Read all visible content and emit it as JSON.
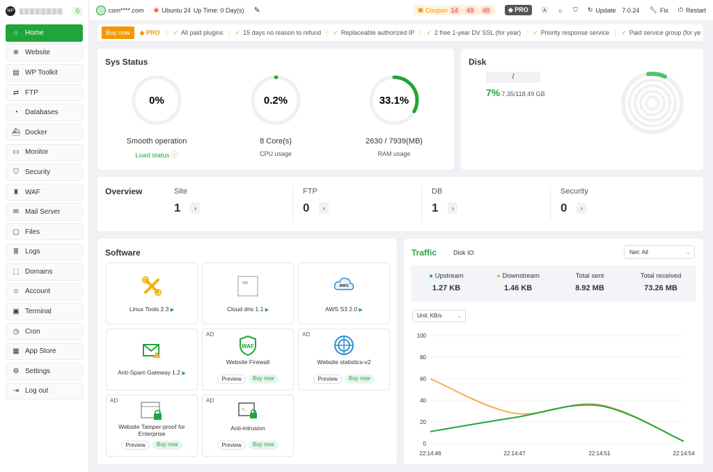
{
  "sidebar": {
    "user": "(blurred)",
    "badge": "0",
    "items": [
      {
        "label": "Home",
        "icon": "home-icon"
      },
      {
        "label": "Website",
        "icon": "globe-icon"
      },
      {
        "label": "WP Toolkit",
        "icon": "wordpress-icon"
      },
      {
        "label": "FTP",
        "icon": "transfer-icon"
      },
      {
        "label": "Databases",
        "icon": "database-icon"
      },
      {
        "label": "Docker",
        "icon": "docker-icon"
      },
      {
        "label": "Monitor",
        "icon": "monitor-icon"
      },
      {
        "label": "Security",
        "icon": "shield-icon"
      },
      {
        "label": "WAF",
        "icon": "waf-icon"
      },
      {
        "label": "Mail Server",
        "icon": "mail-icon"
      },
      {
        "label": "Files",
        "icon": "folder-icon"
      },
      {
        "label": "Logs",
        "icon": "log-icon"
      },
      {
        "label": "Domains",
        "icon": "domain-icon"
      },
      {
        "label": "Account",
        "icon": "user-icon"
      },
      {
        "label": "Terminal",
        "icon": "terminal-icon"
      },
      {
        "label": "Cron",
        "icon": "clock-icon"
      },
      {
        "label": "App Store",
        "icon": "store-icon"
      },
      {
        "label": "Settings",
        "icon": "gear-icon"
      },
      {
        "label": "Log out",
        "icon": "logout-icon"
      }
    ]
  },
  "topbar": {
    "account": "com****.com",
    "os": "Ubuntu 24",
    "uptime": "Up Time: 0 Day(s)",
    "coupon": "Coupon",
    "cd_h": "14",
    "cd_m": "49",
    "cd_s": "48",
    "pro": "PRO",
    "update": "Update",
    "version": "7.0.24",
    "fix": "Fix",
    "restart": "Restart"
  },
  "promo": {
    "buy": "Buy now",
    "pro": "PRO",
    "features": [
      "All paid plugins",
      "15 days no reason to refund",
      "Replaceable authorized IP",
      "2 free 1-year DV SSL (for year)",
      "Priority response service",
      "Paid service group (for ye"
    ]
  },
  "sys": {
    "title": "Sys Status",
    "load": {
      "value": "0%",
      "title": "Smooth operation",
      "sub": "Load status",
      "percent": 0
    },
    "cpu": {
      "value": "0.2%",
      "title": "8 Core(s)",
      "sub": "CPU usage",
      "percent": 0.2
    },
    "ram": {
      "value": "33.1%",
      "title": "2630 / 7939(MB)",
      "sub": "RAM usage",
      "percent": 33.1
    }
  },
  "disk": {
    "title": "Disk",
    "mount": "/",
    "percent": "7%",
    "usage": "7.35/118.49 GB"
  },
  "overview": {
    "title": "Overview",
    "items": [
      {
        "label": "Site",
        "value": "1"
      },
      {
        "label": "FTP",
        "value": "0"
      },
      {
        "label": "DB",
        "value": "1"
      },
      {
        "label": "Security",
        "value": "0"
      }
    ]
  },
  "software": {
    "title": "Software",
    "ad": "AD",
    "preview": "Preview",
    "buy": "Buy now",
    "items": [
      {
        "name": "Linux Tools 2.3",
        "icon": "tools-icon"
      },
      {
        "name": "Cloud dns 1.1",
        "icon": "cloud-dns-icon"
      },
      {
        "name": "AWS S3 2.0",
        "icon": "aws-icon"
      },
      {
        "name": "Anti-Spam Gateway 1.2",
        "icon": "spam-mail-icon"
      },
      {
        "name": "Website Firewall",
        "icon": "waf-shield-icon"
      },
      {
        "name": "Website statistics-v2",
        "icon": "statistics-icon"
      },
      {
        "name": "Website Tamper-proof for Enterprise",
        "icon": "tamper-proof-icon"
      },
      {
        "name": "Anti-intrusion",
        "icon": "intrusion-icon"
      }
    ]
  },
  "traffic": {
    "title": "Traffic",
    "tab2": "Disk IO",
    "select": "Net: All",
    "unit": "Unit: KB/s",
    "stats": [
      {
        "label": "Upstream",
        "value": "1.27 KB",
        "color": "#20a53a"
      },
      {
        "label": "Downstream",
        "value": "1.46 KB",
        "color": "#f0ad4e"
      },
      {
        "label": "Total sent",
        "value": "8.92 MB"
      },
      {
        "label": "Total received",
        "value": "73.26 MB"
      }
    ]
  },
  "chart_data": {
    "type": "line",
    "x": [
      "22:14:46",
      "22:14:47",
      "22:14:51",
      "22:14:54"
    ],
    "ylim": [
      0,
      100
    ],
    "yticks": [
      0,
      20,
      40,
      60,
      80,
      100
    ],
    "series": [
      {
        "name": "Upstream",
        "color": "#20a53a",
        "values": [
          11,
          24,
          35,
          2
        ]
      },
      {
        "name": "Downstream",
        "color": "#f0ad4e",
        "values": [
          60,
          28,
          36,
          2
        ]
      }
    ]
  }
}
